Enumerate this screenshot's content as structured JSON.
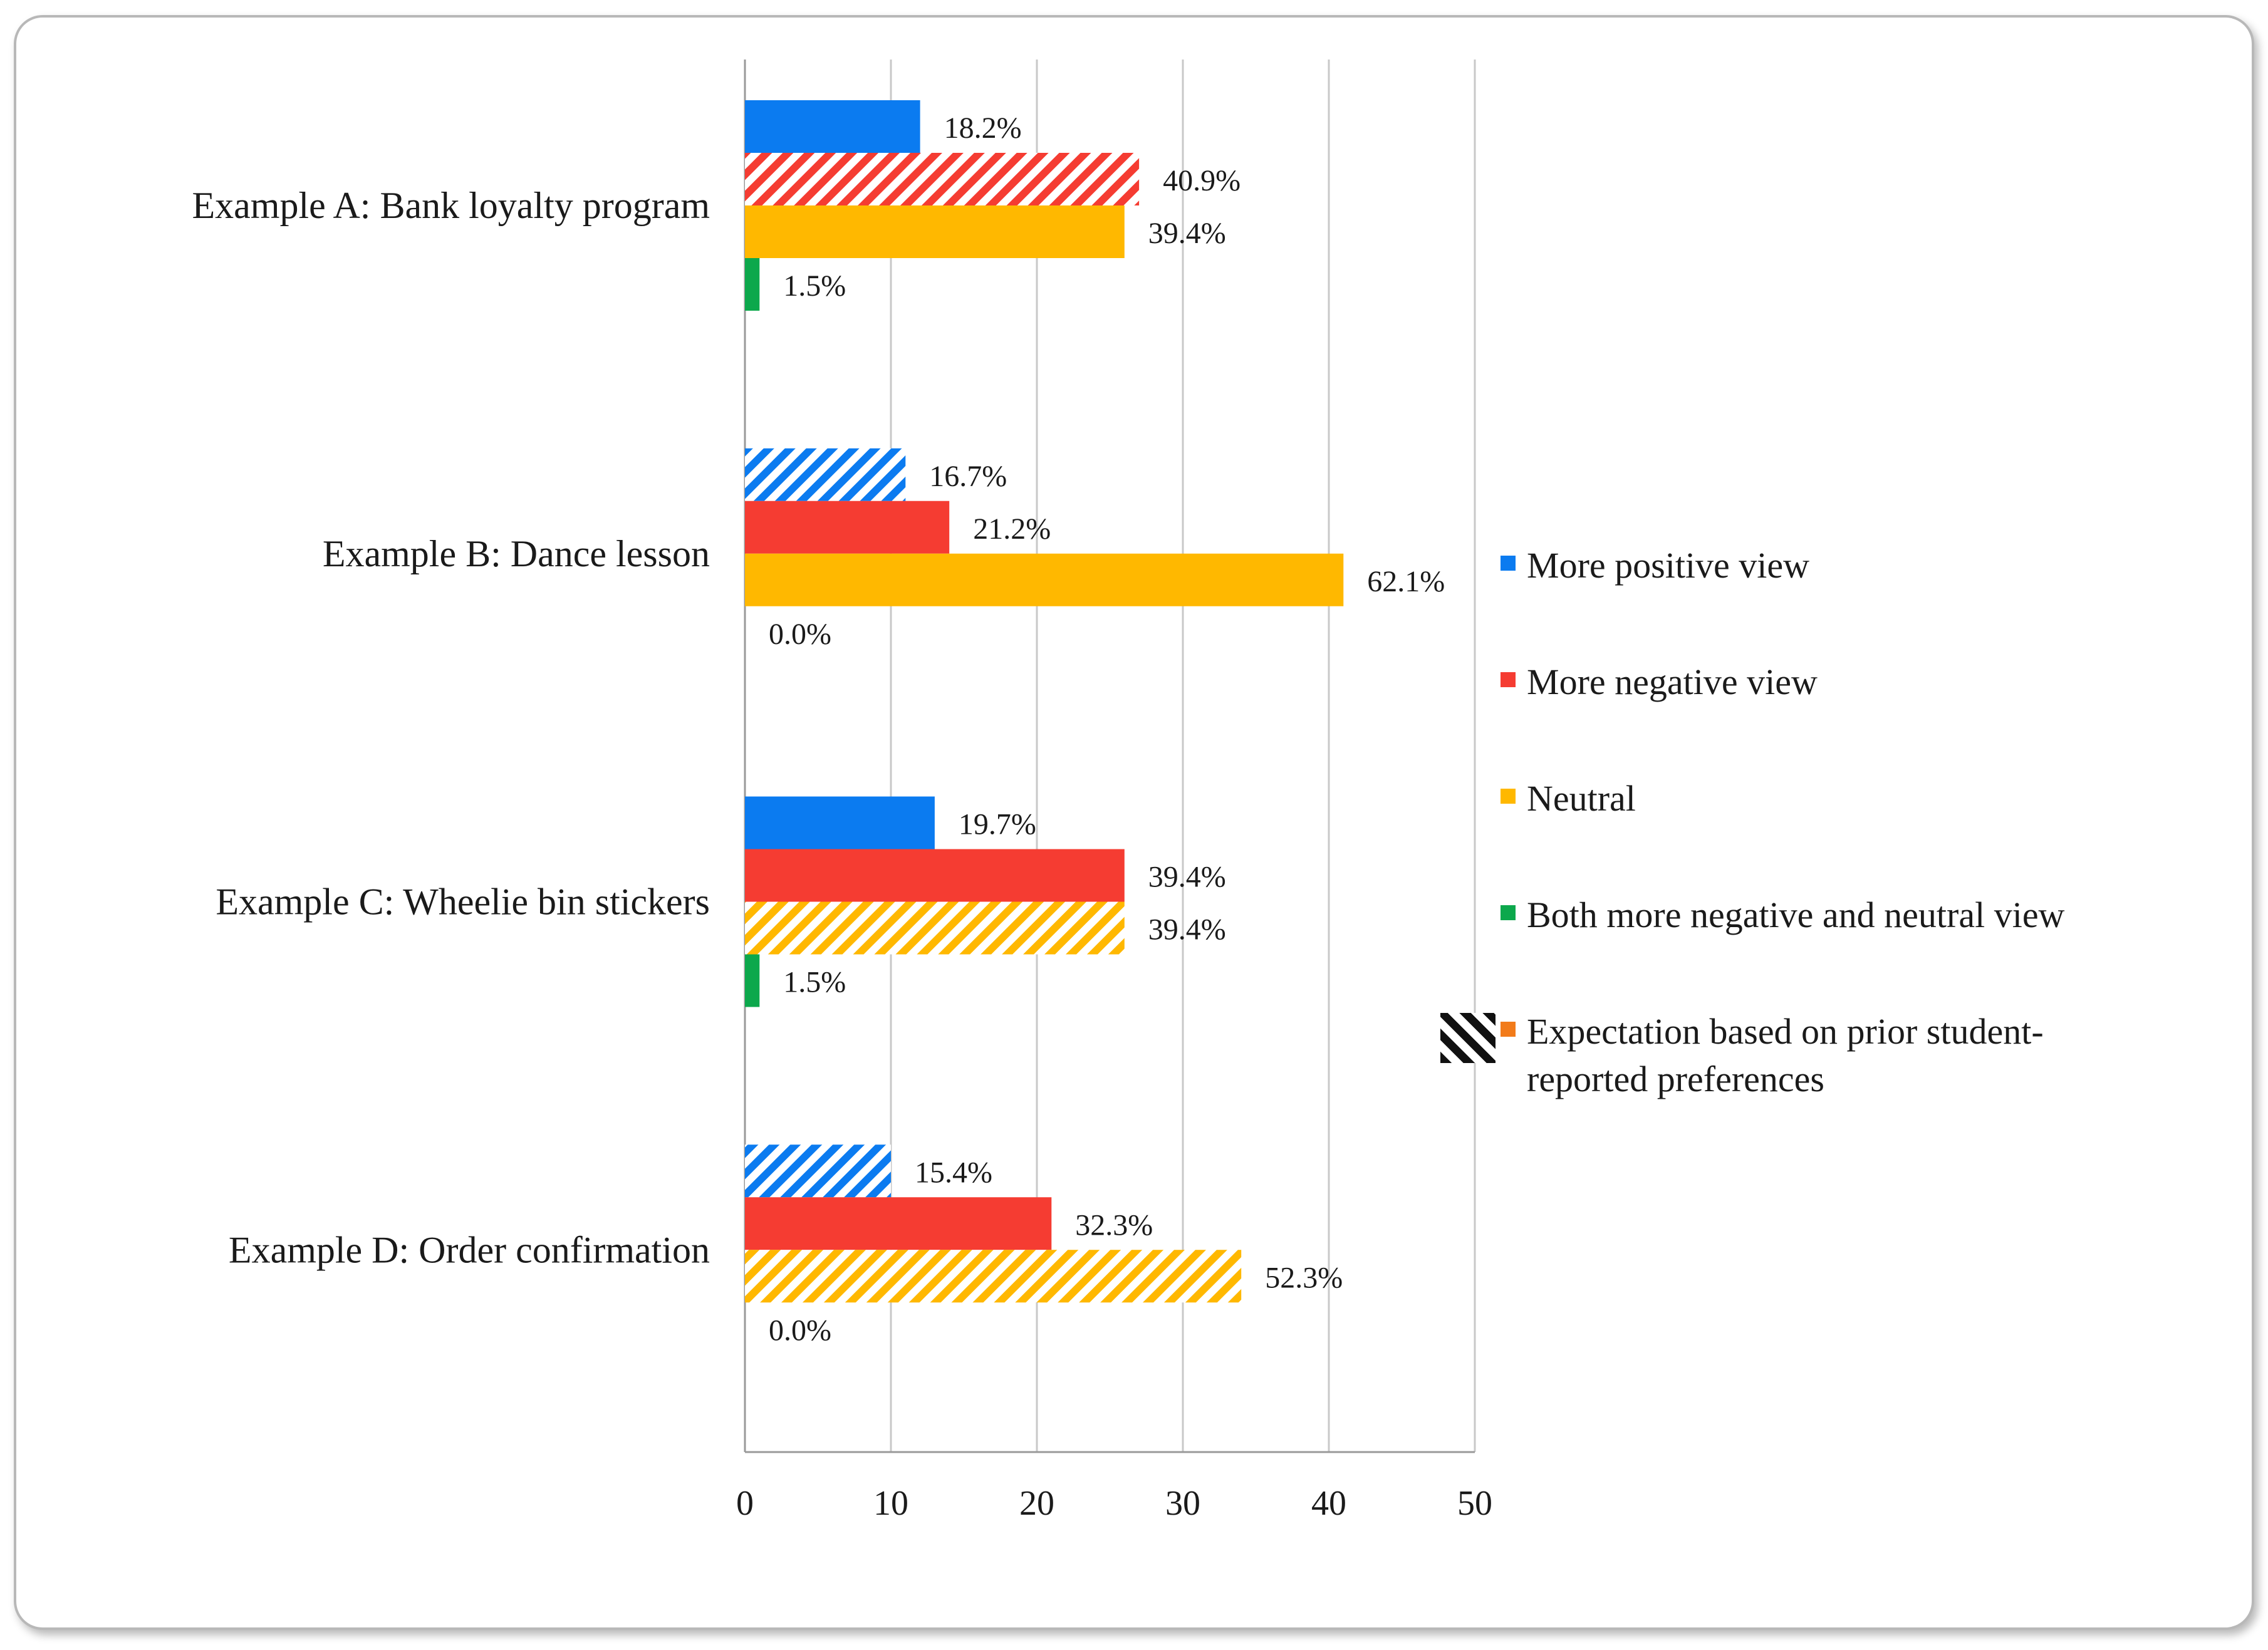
{
  "chart_data": {
    "type": "bar",
    "orientation": "horizontal",
    "categories": [
      "Example A: Bank loyalty program",
      "Example B: Dance lesson",
      "Example C: Wheelie bin stickers",
      "Example D: Order confirmation"
    ],
    "series": [
      {
        "name": "More positive view",
        "color": "#0B7BF0",
        "values": [
          12,
          11,
          13,
          10
        ],
        "labels": [
          "18.2%",
          "16.7%",
          "19.7%",
          "15.4%"
        ],
        "hatched": [
          false,
          true,
          false,
          true
        ]
      },
      {
        "name": "More negative view",
        "color": "#F53C32",
        "values": [
          27,
          14,
          26,
          21
        ],
        "labels": [
          "40.9%",
          "21.2%",
          "39.4%",
          "32.3%"
        ],
        "hatched": [
          true,
          false,
          false,
          false
        ]
      },
      {
        "name": "Neutral",
        "color": "#FFB800",
        "values": [
          26,
          41,
          26,
          34
        ],
        "labels": [
          "39.4%",
          "62.1%",
          "39.4%",
          "52.3%"
        ],
        "hatched": [
          false,
          false,
          true,
          true
        ]
      },
      {
        "name": "Both more negative and neutral view",
        "color": "#0CA84C",
        "values": [
          1,
          0,
          1,
          0
        ],
        "labels": [
          "1.5%",
          "0.0%",
          "1.5%",
          "0.0%"
        ],
        "hatched": [
          false,
          false,
          false,
          false
        ]
      }
    ],
    "xlim": [
      0,
      50
    ],
    "xticks": [
      "0",
      "10",
      "20",
      "30",
      "40",
      "50"
    ],
    "grid": true,
    "legend_position": "right",
    "legend": [
      {
        "label": "More positive view",
        "color": "#0B7BF0"
      },
      {
        "label": "More negative view",
        "color": "#F53C32"
      },
      {
        "label": "Neutral",
        "color": "#FFB800"
      },
      {
        "label": "Both more negative and neutral view",
        "color": "#0CA84C"
      },
      {
        "label_line1": "Expectation based on prior student-",
        "label_line2": "reported preferences",
        "color": "#F27B1A",
        "hatched": true
      }
    ]
  }
}
